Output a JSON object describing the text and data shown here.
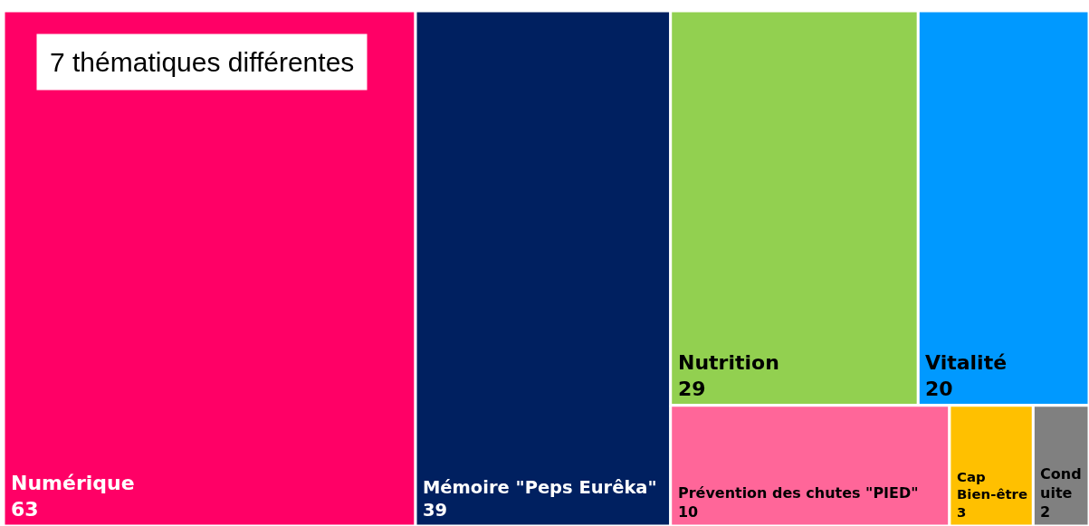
{
  "chart_data": {
    "type": "other",
    "annotations": [
      "7 thématiques différentes"
    ],
    "categories": [
      "Numérique",
      "Mémoire \"Peps Eurêka\"",
      "Nutrition",
      "Vitalité",
      "Prévention des chutes \"PIED\"",
      "Cap Bien-être",
      "Conduite"
    ],
    "values": [
      63,
      39,
      29,
      20,
      10,
      3,
      2
    ],
    "colors": [
      "#ff0066",
      "#002060",
      "#92d050",
      "#0099ff",
      "#ff6699",
      "#ffc000",
      "#808080"
    ],
    "data_labels": true
  }
}
